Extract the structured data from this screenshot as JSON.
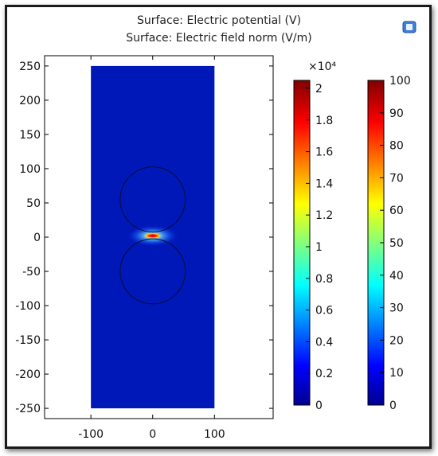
{
  "window": {
    "title_line1": "Surface: Electric potential (V)",
    "title_line2": "Surface: Electric field norm (V/m)",
    "corner_icon": "window-restore-icon"
  },
  "chart_data": {
    "type": "heatmap",
    "title": "Surface: Electric potential (V)",
    "subtitle": "Surface: Electric field norm (V/m)",
    "xlabel": "",
    "ylabel": "",
    "xlim": [
      -175,
      195
    ],
    "ylim": [
      -265,
      265
    ],
    "x_ticks": [
      "-100",
      "0",
      "100"
    ],
    "y_ticks": [
      "250",
      "200",
      "150",
      "100",
      "50",
      "0",
      "-50",
      "-100",
      "-150",
      "-200",
      "-250"
    ],
    "x_tick_values": [
      -100,
      0,
      100
    ],
    "y_tick_values": [
      250,
      200,
      150,
      100,
      50,
      0,
      -50,
      -100,
      -150,
      -200,
      -250
    ],
    "domain": {
      "x": [
        -100,
        100
      ],
      "y": [
        -250,
        250
      ]
    },
    "spheres": [
      {
        "center_x": 0,
        "center_y": 55,
        "radius": 50
      },
      {
        "center_x": 0,
        "center_y": -50,
        "radius": 50
      }
    ],
    "hotspot": {
      "x": 0,
      "y": 2
    },
    "colorbars": [
      {
        "name": "Electric potential",
        "exponent_label": "×10⁴",
        "range": [
          0,
          2.05
        ],
        "tick_values": [
          0,
          0.2,
          0.4,
          0.6,
          0.8,
          1,
          1.2,
          1.4,
          1.6,
          1.8,
          2
        ],
        "tick_labels": [
          "0",
          "0.2",
          "0.4",
          "0.6",
          "0.8",
          "1",
          "1.2",
          "1.4",
          "1.6",
          "1.8",
          "2"
        ]
      },
      {
        "name": "Electric field norm",
        "range": [
          0,
          100
        ],
        "tick_values": [
          0,
          10,
          20,
          30,
          40,
          50,
          60,
          70,
          80,
          90,
          100
        ],
        "tick_labels": [
          "0",
          "10",
          "20",
          "30",
          "40",
          "50",
          "60",
          "70",
          "80",
          "90",
          "100"
        ]
      }
    ],
    "grid": false,
    "colormap": [
      "#00008f",
      "#0000ff",
      "#00ffff",
      "#ffff00",
      "#ff0000",
      "#800000"
    ]
  }
}
